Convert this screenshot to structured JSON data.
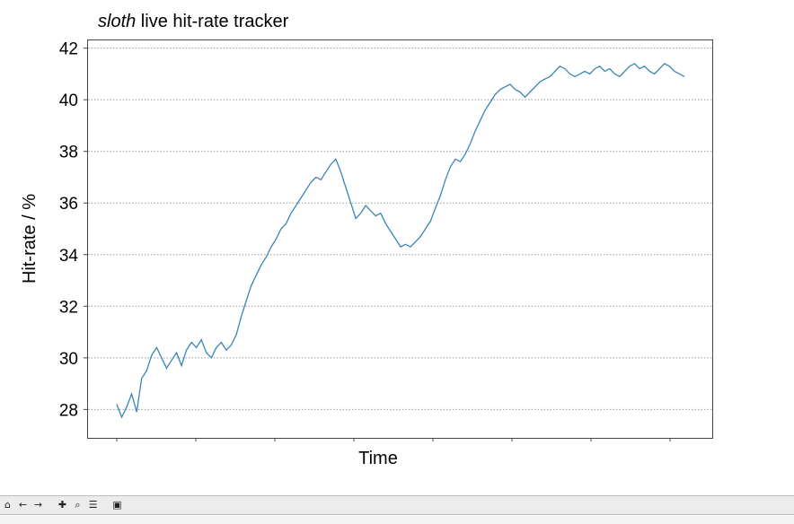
{
  "chart_data": {
    "type": "line",
    "title_italic": "sloth",
    "title_rest": " live hit-rate tracker",
    "xlabel": "Time",
    "ylabel": "Hit-rate  / %",
    "ylim": [
      26.9,
      42.3
    ],
    "yticks": [
      "28",
      "30",
      "32",
      "34",
      "36",
      "38",
      "40",
      "42"
    ],
    "grid": "horizontal-dotted",
    "x_tick_labels": false,
    "series": [
      {
        "color": "#3a86b4",
        "values": [
          28.2,
          27.7,
          28.1,
          28.6,
          27.9,
          29.2,
          29.5,
          30.1,
          30.4,
          30.0,
          29.6,
          29.9,
          30.2,
          29.7,
          30.3,
          30.6,
          30.4,
          30.7,
          30.2,
          30.0,
          30.4,
          30.6,
          30.3,
          30.5,
          30.9,
          31.6,
          32.2,
          32.8,
          33.2,
          33.6,
          33.9,
          34.3,
          34.6,
          35.0,
          35.2,
          35.6,
          35.9,
          36.2,
          36.5,
          36.8,
          37.0,
          36.9,
          37.2,
          37.5,
          37.7,
          37.2,
          36.6,
          36.0,
          35.4,
          35.6,
          35.9,
          35.7,
          35.5,
          35.6,
          35.2,
          34.9,
          34.6,
          34.3,
          34.4,
          34.3,
          34.5,
          34.7,
          35.0,
          35.3,
          35.8,
          36.3,
          36.9,
          37.4,
          37.7,
          37.6,
          37.9,
          38.3,
          38.8,
          39.2,
          39.6,
          39.9,
          40.2,
          40.4,
          40.5,
          40.6,
          40.4,
          40.3,
          40.1,
          40.3,
          40.5,
          40.7,
          40.8,
          40.9,
          41.1,
          41.3,
          41.2,
          41.0,
          40.9,
          41.0,
          41.1,
          41.0,
          41.2,
          41.3,
          41.1,
          41.2,
          41.0,
          40.9,
          41.1,
          41.3,
          41.4,
          41.2,
          41.3,
          41.1,
          41.0,
          41.2,
          41.4,
          41.3,
          41.1,
          41.0,
          40.9
        ]
      }
    ]
  },
  "toolbar": {
    "home_icon": "⌂",
    "back_icon": "←",
    "forward_icon": "→",
    "pan_icon": "✚",
    "zoom_icon": "⌕",
    "configure_icon": "☰",
    "save_icon": "▣"
  }
}
